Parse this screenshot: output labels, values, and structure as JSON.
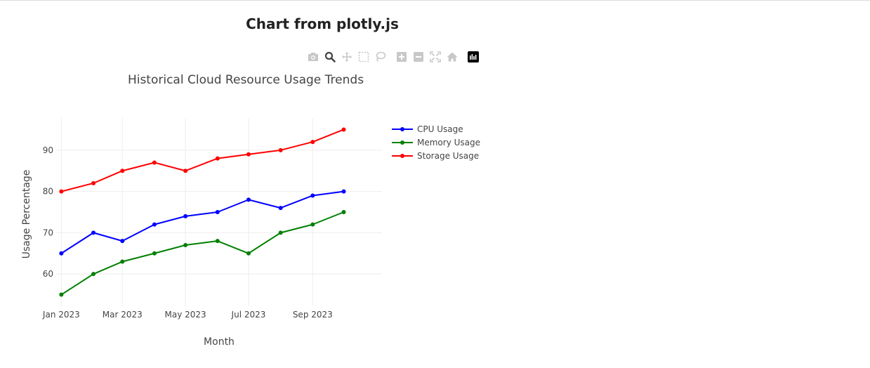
{
  "page": {
    "heading": "Chart from plotly.js"
  },
  "modebar": {
    "buttons": [
      "camera-icon",
      "zoom-icon",
      "pan-icon",
      "box-select-icon",
      "lasso-icon",
      "zoom-in-icon",
      "zoom-out-icon",
      "autoscale-icon",
      "reset-axes-icon",
      "plotly-logo-icon"
    ],
    "active_color": "#444444",
    "inactive_color": "#c8c8c8"
  },
  "chart_data": {
    "type": "line",
    "title": "Historical Cloud Resource Usage Trends",
    "xlabel": "Month",
    "ylabel": "Usage Percentage",
    "x": [
      "2023-01",
      "2023-02",
      "2023-03",
      "2023-04",
      "2023-05",
      "2023-06",
      "2023-07",
      "2023-08",
      "2023-09",
      "2023-10"
    ],
    "x_ticks": [
      {
        "value": "2023-01",
        "label": "Jan 2023"
      },
      {
        "value": "2023-03",
        "label": "Mar 2023"
      },
      {
        "value": "2023-05",
        "label": "May 2023"
      },
      {
        "value": "2023-07",
        "label": "Jul 2023"
      },
      {
        "value": "2023-09",
        "label": "Sep 2023"
      }
    ],
    "y_ticks": [
      60,
      70,
      80,
      90
    ],
    "xlim": [
      "2022-12-27",
      "2023-11-07"
    ],
    "ylim": [
      52.2,
      97.8
    ],
    "grid": true,
    "legend_position": "top-right",
    "series": [
      {
        "name": "CPU Usage",
        "color": "#0000ff",
        "values": [
          65,
          70,
          68,
          72,
          74,
          75,
          78,
          76,
          79,
          80
        ]
      },
      {
        "name": "Memory Usage",
        "color": "#008000",
        "values": [
          55,
          60,
          63,
          65,
          67,
          68,
          65,
          70,
          72,
          75
        ]
      },
      {
        "name": "Storage Usage",
        "color": "#ff0000",
        "values": [
          80,
          82,
          85,
          87,
          85,
          88,
          89,
          90,
          92,
          95
        ]
      }
    ]
  }
}
